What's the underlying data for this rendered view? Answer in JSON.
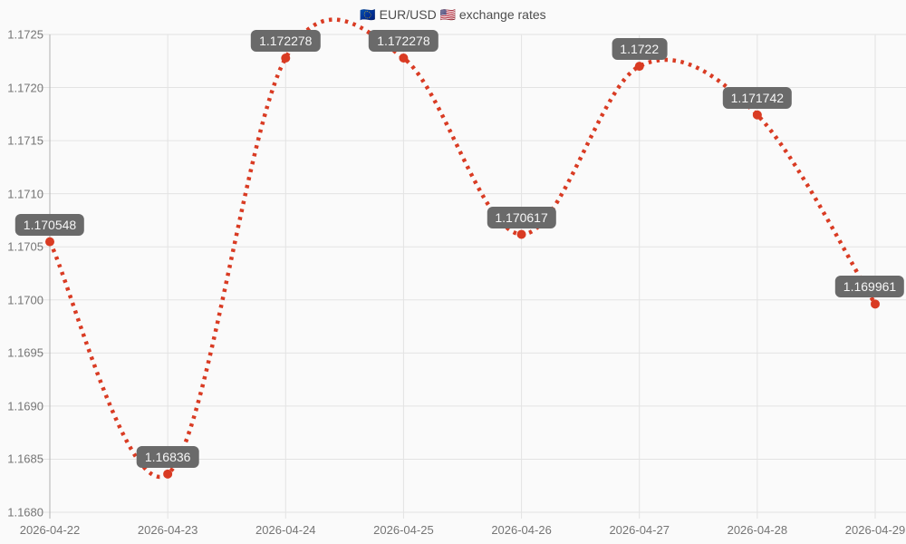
{
  "chart_data": {
    "type": "line",
    "title": "🇪🇺 EUR/USD 🇺🇸 exchange rates",
    "xlabel": "",
    "ylabel": "",
    "x": [
      "2026-04-22",
      "2026-04-23",
      "2026-04-24",
      "2026-04-25",
      "2026-04-26",
      "2026-04-27",
      "2026-04-28",
      "2026-04-29"
    ],
    "series": [
      {
        "name": "EUR/USD",
        "values": [
          1.170548,
          1.16836,
          1.172278,
          1.172278,
          1.170617,
          1.1722,
          1.171742,
          1.169961
        ],
        "point_labels": [
          "1.170548",
          "1.16836",
          "1.172278",
          "1.172278",
          "1.170617",
          "1.1722",
          "1.171742",
          "1.169961"
        ]
      }
    ],
    "ylim": [
      1.168,
      1.1725
    ],
    "y_ticks": [
      "1.1725",
      "1.1720",
      "1.1715",
      "1.1710",
      "1.1705",
      "1.1700",
      "1.1695",
      "1.1690",
      "1.1685",
      "1.1680"
    ],
    "grid": true,
    "legend_position": "none",
    "line_style": "dotted-curve",
    "colors": {
      "line": "#d93b23",
      "point": "#d93b23",
      "label_bg": "#6a6a6a",
      "label_text": "#f6f6f6",
      "gridline": "#e3e3e3",
      "axis_line": "#b0b0b0",
      "tick_text": "#757575",
      "title_text": "#4d4d4d",
      "background": "#fafafa"
    }
  }
}
